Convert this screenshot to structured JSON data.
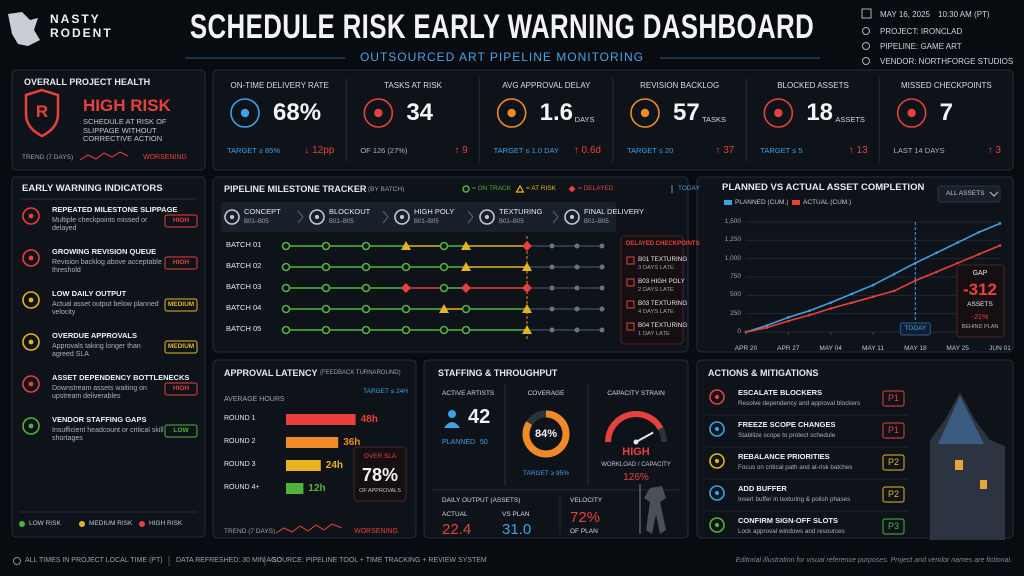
{
  "header": {
    "brand": [
      "NASTY",
      "RODENT"
    ],
    "title": "SCHEDULE RISK EARLY WARNING DASHBOARD",
    "subtitle": "OUTSOURCED ART PIPELINE MONITORING",
    "date": "MAY 16, 2025",
    "time": "10:30 AM (PT)",
    "meta": [
      "PROJECT: IRONCLAD",
      "PIPELINE: GAME ART",
      "VENDOR: NORTHFORGE STUDIOS"
    ]
  },
  "health": {
    "title": "OVERALL PROJECT HEALTH",
    "badge": "R",
    "status": "HIGH RISK",
    "description": "SCHEDULE AT RISK OF SLIPPAGE WITHOUT CORRECTIVE ACTION",
    "trend_label": "TREND (7 DAYS)",
    "trend_status": "WORSENING"
  },
  "kpis": [
    {
      "title": "ON-TIME DELIVERY RATE",
      "value": "68%",
      "note": "TARGET ≥ 85%",
      "delta": "↓ 12pp",
      "color": "#3fa0e6"
    },
    {
      "title": "TASKS AT RISK",
      "value": "34",
      "note": "OF 126 (27%)",
      "delta": "↑ 9",
      "color": "#e8403a"
    },
    {
      "title": "AVG APPROVAL DELAY",
      "value": "1.6",
      "unit": "DAYS",
      "note": "TARGET ≤ 1.0 DAY",
      "delta": "↑ 0.6d",
      "color": "#f08a24"
    },
    {
      "title": "REVISION BACKLOG",
      "value": "57",
      "unit": "TASKS",
      "note": "TARGET ≤ 20",
      "delta": "↑ 37",
      "color": "#f08a24"
    },
    {
      "title": "BLOCKED ASSETS",
      "value": "18",
      "unit": "ASSETS",
      "note": "TARGET ≤ 5",
      "delta": "↑ 13",
      "color": "#e8403a"
    },
    {
      "title": "MISSED CHECKPOINTS",
      "value": "7",
      "note": "LAST 14 DAYS",
      "delta": "↑ 3",
      "color": "#e8403a"
    }
  ],
  "warnings": {
    "title": "EARLY WARNING INDICATORS",
    "items": [
      {
        "title": "REPEATED MILESTONE SLIPPAGE",
        "description": "Multiple checkpoints missed or delayed",
        "level": "HIGH",
        "color": "#e8403a"
      },
      {
        "title": "GROWING REVISION QUEUE",
        "description": "Revision backlog above acceptable threshold",
        "level": "HIGH",
        "color": "#e8403a"
      },
      {
        "title": "LOW DAILY OUTPUT",
        "description": "Actual asset output below planned velocity",
        "level": "MEDIUM",
        "color": "#e6b422"
      },
      {
        "title": "OVERDUE APPROVALS",
        "description": "Approvals taking longer than agreed SLA",
        "level": "MEDIUM",
        "color": "#e6b422"
      },
      {
        "title": "ASSET DEPENDENCY BOTTLENECKS",
        "description": "Downstream assets waiting on upstream deliverables",
        "level": "HIGH",
        "color": "#e8403a"
      },
      {
        "title": "VENDOR STAFFING GAPS",
        "description": "Insufficient headcount or critical skill shortages",
        "level": "LOW",
        "color": "#52b33c"
      }
    ],
    "legend": [
      {
        "name": "LOW RISK",
        "color": "#52b33c"
      },
      {
        "name": "MEDIUM RISK",
        "color": "#e6b422"
      },
      {
        "name": "HIGH RISK",
        "color": "#e8403a"
      }
    ]
  },
  "milestones": {
    "title": "PIPELINE MILESTONE TRACKER",
    "subtitle": "(BY BATCH)",
    "legend": [
      "= ON TRACK",
      "= AT RISK",
      "= DELAYED"
    ],
    "today": "TODAY",
    "stages": [
      {
        "name": "CONCEPT",
        "range": "B01–B05"
      },
      {
        "name": "BLOCKOUT",
        "range": "B01–B05"
      },
      {
        "name": "HIGH POLY",
        "range": "B01–B05"
      },
      {
        "name": "TEXTURING",
        "range": "B01–B05"
      },
      {
        "name": "FINAL DELIVERY",
        "range": "B01–B05"
      }
    ],
    "batches": [
      {
        "name": "BATCH 01",
        "status": [
          "on_track",
          "on_track",
          "on_track",
          "at_risk",
          "on_track",
          "at_risk",
          "delayed",
          "pending",
          "pending",
          "pending"
        ]
      },
      {
        "name": "BATCH 02",
        "status": [
          "on_track",
          "on_track",
          "on_track",
          "on_track",
          "on_track",
          "at_risk",
          "at_risk",
          "pending",
          "pending",
          "pending"
        ]
      },
      {
        "name": "BATCH 03",
        "status": [
          "on_track",
          "on_track",
          "on_track",
          "delayed",
          "on_track",
          "delayed",
          "delayed",
          "pending",
          "pending",
          "pending"
        ]
      },
      {
        "name": "BATCH 04",
        "status": [
          "on_track",
          "on_track",
          "on_track",
          "on_track",
          "at_risk",
          "on_track",
          "at_risk",
          "pending",
          "pending",
          "pending"
        ]
      },
      {
        "name": "BATCH 05",
        "status": [
          "on_track",
          "on_track",
          "on_track",
          "on_track",
          "on_track",
          "on_track",
          "at_risk",
          "pending",
          "pending",
          "pending"
        ]
      }
    ],
    "delayed_title": "DELAYED CHECKPOINTS",
    "delayed": [
      {
        "item": "B01 TEXTURING",
        "late": "3 DAYS LATE"
      },
      {
        "item": "B03 HIGH POLY",
        "late": "2 DAYS LATE"
      },
      {
        "item": "B03 TEXTURING",
        "late": "4 DAYS LATE"
      },
      {
        "item": "B04 TEXTURING",
        "late": "1 DAY LATE"
      }
    ]
  },
  "completion": {
    "type": "line",
    "title": "PLANNED VS ACTUAL ASSET COMPLETION",
    "filter": "ALL ASSETS",
    "categories": [
      "APR 20",
      null,
      "APR 27",
      null,
      "MAY 04",
      null,
      "MAY 11",
      null,
      "MAY 18",
      null,
      "MAY 25",
      null,
      "JUN 01"
    ],
    "series": [
      {
        "name": "PLANNED (CUM.)",
        "color": "#3fa0e6",
        "values": [
          0,
          90,
          200,
          290,
          400,
          520,
          640,
          790,
          940,
          1080,
          1220,
          1360,
          1480
        ]
      },
      {
        "name": "ACTUAL (CUM.)",
        "color": "#e8403a",
        "values": [
          0,
          60,
          150,
          230,
          320,
          400,
          480,
          560,
          700,
          820,
          940,
          1060,
          1180
        ]
      }
    ],
    "ylim": [
      0,
      1500
    ],
    "yticks": [
      0,
      250,
      500,
      750,
      {
        "value": 1000,
        "label": "1,000"
      },
      {
        "value": 1250,
        "label": "1,250"
      },
      {
        "value": 1500,
        "label": "1,500"
      }
    ],
    "grid": true,
    "today": "TODAY",
    "gap": {
      "title": "GAP",
      "value": "-312",
      "unit": "ASSETS",
      "percent": "-21%",
      "note": "BEHIND PLAN"
    }
  },
  "latency": {
    "type": "bar",
    "title": "APPROVAL LATENCY",
    "subtitle": "(FEEDBACK TURNAROUND)",
    "target": "TARGET ≤ 24H",
    "axis_label": "AVERAGE HOURS",
    "categories": [
      "ROUND 1",
      "ROUND 2",
      "ROUND 3",
      "ROUND 4+"
    ],
    "values": [
      48,
      36,
      24,
      12
    ],
    "value_labels": [
      "48h",
      "36h",
      "24h",
      "12h"
    ],
    "colors": [
      "#e8403a",
      "#f08a24",
      "#e6b422",
      "#52b33c"
    ],
    "over_sla": {
      "title": "OVER SLA",
      "value": "78%",
      "note": "OF APPROVALS"
    },
    "trend_label": "TREND (7 DAYS)",
    "trend_status": "WORSENING"
  },
  "staffing": {
    "title": "STAFFING & THROUGHPUT",
    "artists_title": "ACTIVE ARTISTS",
    "artists": "42",
    "planned_label": "PLANNED",
    "planned": "50",
    "coverage": {
      "title": "COVERAGE",
      "value": 84,
      "label": "84%",
      "target": "TARGET ≥ 95%"
    },
    "capacity": {
      "title": "CAPACITY STRAIN",
      "status": "HIGH",
      "note": "WORKLOAD / CAPACITY",
      "value": 126,
      "label": "126%"
    },
    "output_title": "DAILY OUTPUT (ASSETS)",
    "actual_label": "ACTUAL",
    "actual": "22.4",
    "plan_label": "VS PLAN",
    "plan": "31.0",
    "velocity_title": "VELOCITY",
    "velocity": "72%",
    "velocity_note": "OF PLAN"
  },
  "actions": {
    "title": "ACTIONS & MITIGATIONS",
    "items": [
      {
        "title": "ESCALATE BLOCKERS",
        "description": "Resolve dependency and approval blockers",
        "priority": "P1",
        "color": "#e8403a"
      },
      {
        "title": "FREEZE SCOPE CHANGES",
        "description": "Stabilize scope to protect schedule",
        "priority": "P1",
        "color": "#e8403a"
      },
      {
        "title": "REBALANCE PRIORITIES",
        "description": "Focus on critical path and at-risk batches",
        "priority": "P2",
        "color": "#e6b422"
      },
      {
        "title": "ADD BUFFER",
        "description": "Insert buffer in texturing & polish phases",
        "priority": "P2",
        "color": "#e6b422"
      },
      {
        "title": "CONFIRM SIGN-OFF SLOTS",
        "description": "Lock approval windows and resources",
        "priority": "P3",
        "color": "#52b33c"
      }
    ]
  },
  "footer": {
    "notes": [
      "ALL TIMES IN PROJECT LOCAL TIME (PT)",
      "DATA REFRESHED: 30 MIN AGO",
      "SOURCE: PIPELINE TOOL + TIME TRACKING + REVIEW SYSTEM"
    ],
    "disclaimer": "Editorial illustration for visual reference purposes. Project and vendor names are fictional."
  }
}
